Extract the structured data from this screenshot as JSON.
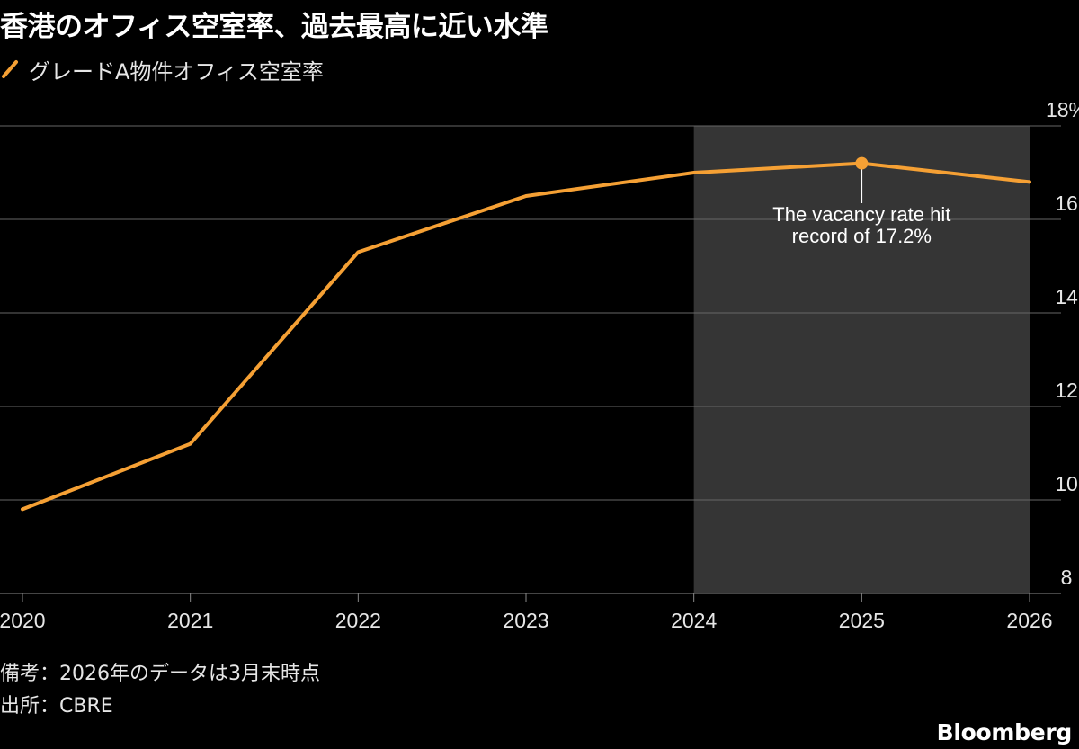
{
  "title": "香港のオフィス空室率、過去最高に近い水準",
  "legend": {
    "label": "グレードA物件オフィス空室率",
    "color": "#f5a034"
  },
  "chart_data": {
    "type": "line",
    "x": [
      "2020",
      "2021",
      "2022",
      "2023",
      "2024",
      "2025",
      "2026"
    ],
    "series": [
      {
        "name": "グレードA物件オフィス空室率",
        "values": [
          9.8,
          11.2,
          15.3,
          16.5,
          17.0,
          17.2,
          16.8
        ],
        "color": "#f5a034"
      }
    ],
    "ylim": [
      8,
      18
    ],
    "y_ticks": [
      {
        "value": 18,
        "label": "18%"
      },
      {
        "value": 16,
        "label": "16"
      },
      {
        "value": 14,
        "label": "14"
      },
      {
        "value": 12,
        "label": "12"
      },
      {
        "value": 10,
        "label": "10"
      },
      {
        "value": 8,
        "label": "8"
      }
    ],
    "y_axis_side": "right",
    "grid": true,
    "shaded_range": [
      "2024",
      "2026"
    ],
    "annotation": {
      "x": "2025",
      "y": 17.2,
      "lines": [
        "The vacancy rate hit",
        "record of 17.2%"
      ]
    }
  },
  "notes": [
    "備考：2026年のデータは3月末時点",
    "出所：CBRE"
  ],
  "source_logo": "Bloomberg",
  "colors": {
    "background": "#000000",
    "line": "#f5a034",
    "grid": "#666666",
    "shade": "#353535"
  }
}
